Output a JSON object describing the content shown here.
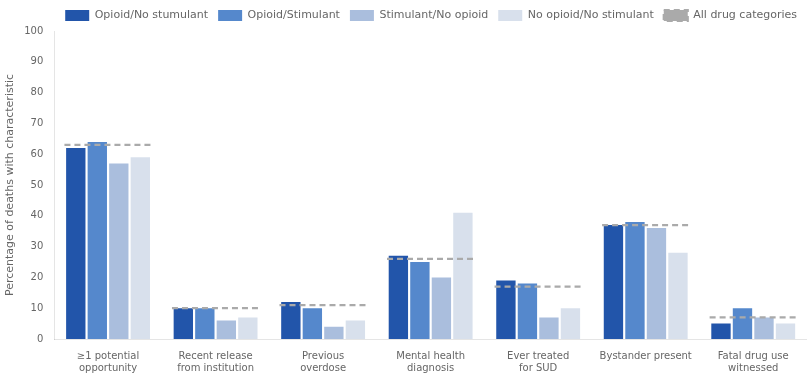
{
  "chart_data": {
    "type": "bar",
    "categories": [
      "≥1 potential\nopportunity",
      "Recent release\nfrom institution",
      "Previous\noverdose",
      "Mental health\ndiagnosis",
      "Ever treated\nfor SUD",
      "Bystander present",
      "Fatal drug use\nwitnessed"
    ],
    "series": [
      {
        "name": "Opioid/No stumulant",
        "color": "#2255aa",
        "values": [
          62,
          10,
          12,
          27,
          19,
          37,
          5
        ]
      },
      {
        "name": "Opioid/Stimulant",
        "color": "#5588cc",
        "values": [
          64,
          10,
          10,
          25,
          18,
          38,
          10
        ]
      },
      {
        "name": "Stimulant/No opioid",
        "color": "#aabedd",
        "values": [
          57,
          6,
          4,
          20,
          7,
          36,
          7
        ]
      },
      {
        "name": "No opioid/No stimulant",
        "color": "#d8e0ec",
        "values": [
          59,
          7,
          6,
          41,
          10,
          28,
          5
        ]
      },
      {
        "name": "All drug categories",
        "type": "line",
        "line_style": "dashed",
        "color": "#aaaaaa",
        "values": [
          63,
          10,
          11,
          26,
          17,
          37,
          7
        ]
      }
    ],
    "ylabel": "Percentage of deaths with characteristic",
    "ylim": [
      0,
      100
    ],
    "yticks": [
      0,
      10,
      20,
      30,
      40,
      50,
      60,
      70,
      80,
      90,
      100
    ],
    "grid": false,
    "legend": "upper right"
  }
}
